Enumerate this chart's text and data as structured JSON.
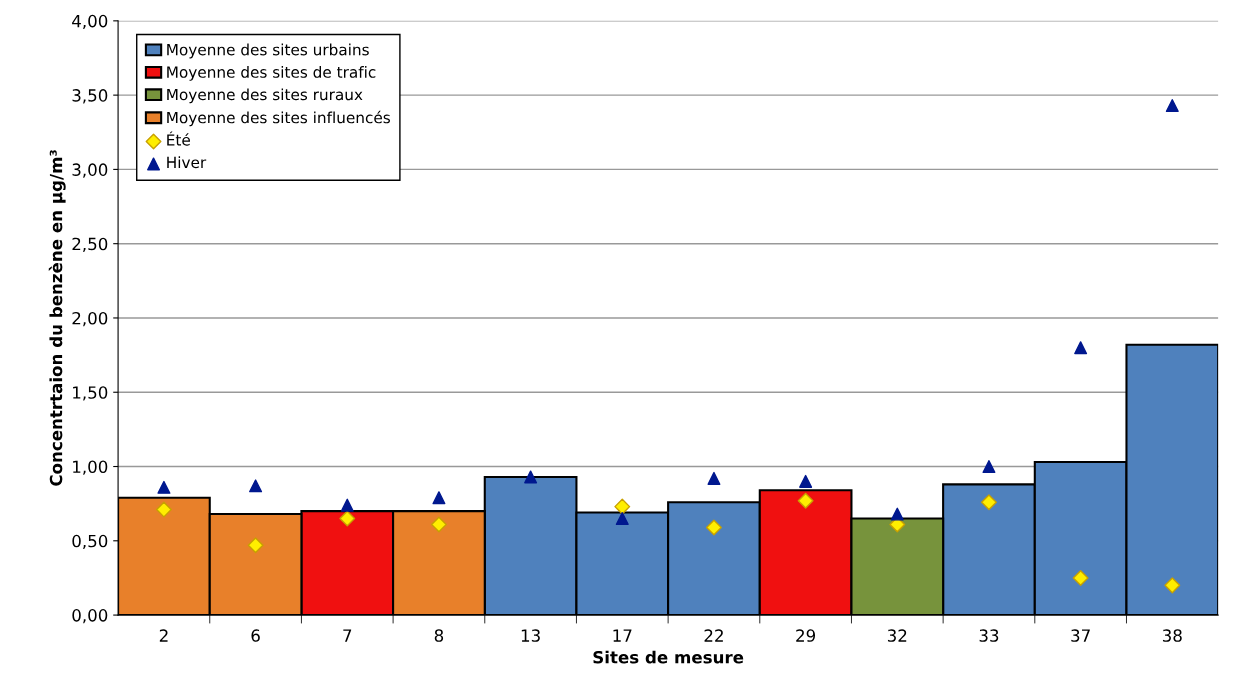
{
  "chart_data": {
    "type": "bar",
    "xlabel": "Sites de mesure",
    "ylabel": "Concentrtaion du benzène en µg/m³",
    "categories": [
      "2",
      "6",
      "7",
      "8",
      "13",
      "17",
      "22",
      "29",
      "32",
      "33",
      "37",
      "38"
    ],
    "series": [
      {
        "name": "Moyenne des sites urbains",
        "color": "#4f81bd",
        "values": [
          null,
          null,
          null,
          null,
          0.93,
          0.69,
          0.76,
          null,
          null,
          0.88,
          1.03,
          1.82
        ]
      },
      {
        "name": "Moyenne des sites de trafic",
        "color": "#f01010",
        "values": [
          null,
          null,
          0.7,
          null,
          null,
          null,
          null,
          0.84,
          null,
          null,
          null,
          null
        ]
      },
      {
        "name": "Moyenne des sites ruraux",
        "color": "#77933c",
        "values": [
          null,
          null,
          null,
          null,
          null,
          null,
          null,
          null,
          0.65,
          null,
          null,
          null
        ]
      },
      {
        "name": "Moyenne des sites influencés",
        "color": "#e8802a",
        "values": [
          0.79,
          0.68,
          null,
          0.7,
          null,
          null,
          null,
          null,
          null,
          null,
          null,
          null
        ]
      },
      {
        "name": "Été",
        "type": "scatter",
        "marker": "diamond",
        "color": "#ffee00",
        "values": [
          0.71,
          0.47,
          0.65,
          0.61,
          null,
          0.73,
          0.59,
          0.77,
          0.61,
          0.76,
          0.25,
          0.2
        ]
      },
      {
        "name": "Hiver",
        "type": "scatter",
        "marker": "triangle",
        "color": "#00188f",
        "values": [
          0.86,
          0.87,
          0.74,
          0.79,
          0.93,
          0.65,
          0.92,
          0.9,
          0.68,
          1.0,
          1.8,
          3.43
        ]
      }
    ],
    "ylim": [
      0,
      4
    ],
    "yticks": [
      {
        "value": 0,
        "label": "0,00"
      },
      {
        "value": 0.5,
        "label": "0,50"
      },
      {
        "value": 1,
        "label": "1,00"
      },
      {
        "value": 1.5,
        "label": "1,50"
      },
      {
        "value": 2,
        "label": "2,00"
      },
      {
        "value": 2.5,
        "label": "2,50"
      },
      {
        "value": 3,
        "label": "3,00"
      },
      {
        "value": 3.5,
        "label": "3,50"
      },
      {
        "value": 4,
        "label": "4,00"
      }
    ],
    "grid": "y",
    "legend": "top left"
  }
}
